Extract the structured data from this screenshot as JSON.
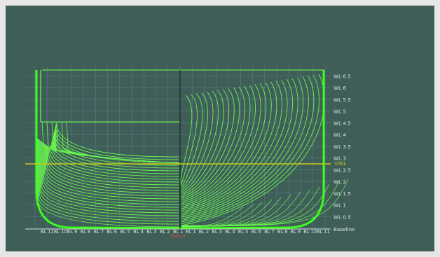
{
  "view": {
    "waterlines": [
      "WL 0.5",
      "WL 1",
      "WL 1.5",
      "WL 2",
      "WL 2.5",
      "WL 3",
      "WL 3.5",
      "WL 4",
      "WL 4.5",
      "WL 5",
      "WL 5.5",
      "WL 6",
      "WL 6.5"
    ],
    "baseline_label": "Baseline",
    "dwl_label": "DWL",
    "zero_label": "Zero pt",
    "buttock_lines_aft": [
      "BL 11",
      "BL 10",
      "BL 9",
      "BL 8",
      "BL 7",
      "BL 6",
      "BL 5",
      "BL 4",
      "BL 3",
      "BL 2",
      "BL 1"
    ],
    "buttock_lines_fwd": [
      "BL 1",
      "BL 2",
      "BL 3",
      "BL 4",
      "BL 5",
      "BL 6",
      "BL 7",
      "BL 8",
      "BL 9",
      "BL 10",
      "BL 11"
    ]
  },
  "colors": {
    "background": "#3f5e58",
    "grid": "#5f8aa0",
    "station_curve": "#6dff4d",
    "hull_outline": "#3cff1a",
    "dwl": "#c8c81e",
    "label": "#d8e2e0",
    "zero_label": "#e04a4a",
    "baseline": "#c8d2d0"
  }
}
